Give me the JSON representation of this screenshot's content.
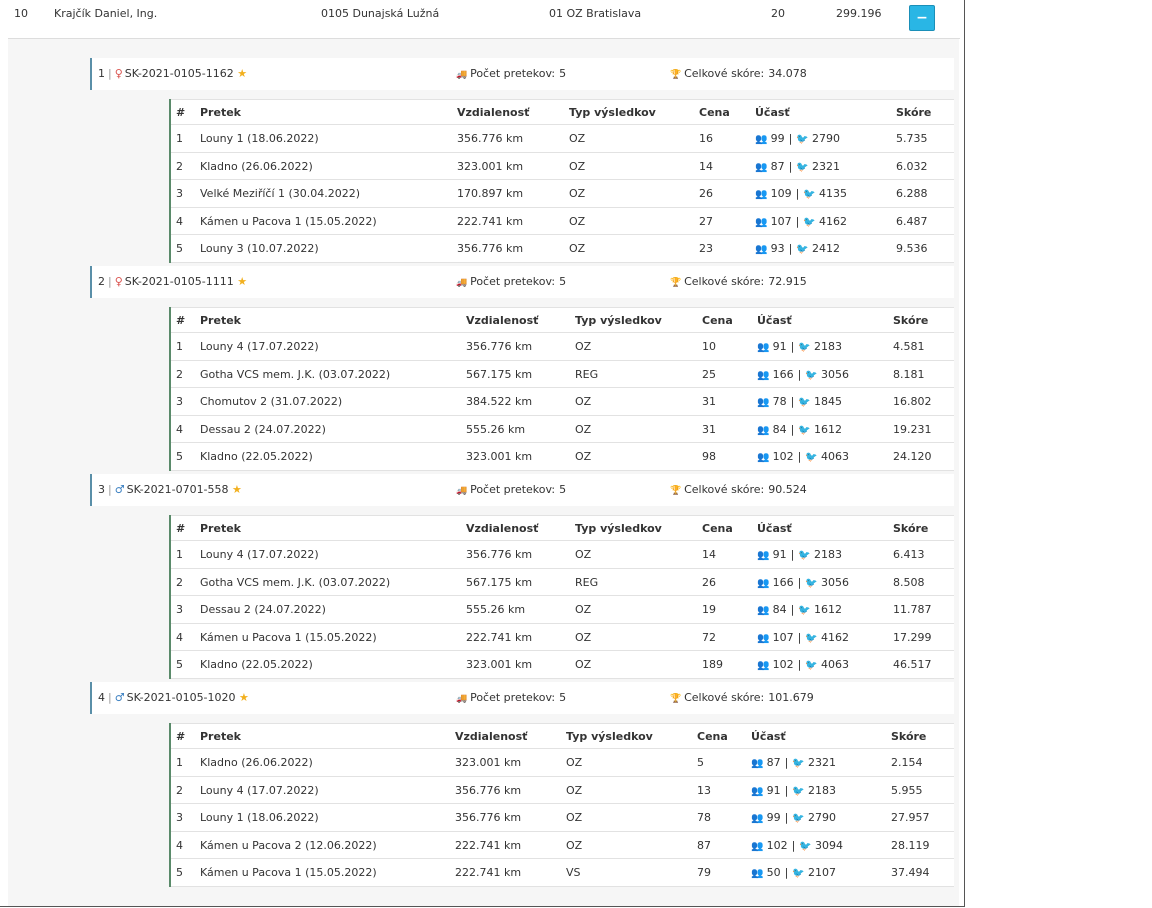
{
  "top_row": {
    "rank": "10",
    "name": "Krajčík Daniel, Ing.",
    "club": "0105 Dunajská Lužná",
    "region": "01 OZ Bratislava",
    "count": "20",
    "score": "299.196",
    "collapse_label": "−"
  },
  "labels": {
    "races_count": "Počet pretekov:",
    "total_score": "Celkové skóre:",
    "sep": "|"
  },
  "columns": {
    "num": "#",
    "race": "Pretek",
    "distance": "Vzdialenosť",
    "type": "Typ výsledkov",
    "price": "Cena",
    "participation": "Účasť",
    "score": "Skóre"
  },
  "colors": {
    "accent": "#29b6e5",
    "participation": "#8a4fc4",
    "star": "#f2b01e"
  },
  "birds": [
    {
      "index": "1",
      "sex_icon": "female-icon",
      "sex_symbol": "♀",
      "ring": "SK-2021-0105-1162",
      "races_count": "5",
      "total_score": "34.078",
      "rows": [
        {
          "n": "1",
          "race": "Louny 1 (18.06.2022)",
          "dist": "356.776 km",
          "type": "OZ",
          "price": "16",
          "p1": "99",
          "p2": "2790",
          "score": "5.735"
        },
        {
          "n": "2",
          "race": "Kladno (26.06.2022)",
          "dist": "323.001 km",
          "type": "OZ",
          "price": "14",
          "p1": "87",
          "p2": "2321",
          "score": "6.032"
        },
        {
          "n": "3",
          "race": "Velké Meziříčí 1 (30.04.2022)",
          "dist": "170.897 km",
          "type": "OZ",
          "price": "26",
          "p1": "109",
          "p2": "4135",
          "score": "6.288"
        },
        {
          "n": "4",
          "race": "Kámen u Pacova 1 (15.05.2022)",
          "dist": "222.741 km",
          "type": "OZ",
          "price": "27",
          "p1": "107",
          "p2": "4162",
          "score": "6.487"
        },
        {
          "n": "5",
          "race": "Louny 3 (10.07.2022)",
          "dist": "356.776 km",
          "type": "OZ",
          "price": "23",
          "p1": "93",
          "p2": "2412",
          "score": "9.536"
        }
      ]
    },
    {
      "index": "2",
      "sex_icon": "female-icon",
      "sex_symbol": "♀",
      "ring": "SK-2021-0105-1111",
      "races_count": "5",
      "total_score": "72.915",
      "rows": [
        {
          "n": "1",
          "race": "Louny 4 (17.07.2022)",
          "dist": "356.776 km",
          "type": "OZ",
          "price": "10",
          "p1": "91",
          "p2": "2183",
          "score": "4.581"
        },
        {
          "n": "2",
          "race": "Gotha VCS mem. J.K. (03.07.2022)",
          "dist": "567.175 km",
          "type": "REG",
          "price": "25",
          "p1": "166",
          "p2": "3056",
          "score": "8.181"
        },
        {
          "n": "3",
          "race": "Chomutov 2 (31.07.2022)",
          "dist": "384.522 km",
          "type": "OZ",
          "price": "31",
          "p1": "78",
          "p2": "1845",
          "score": "16.802"
        },
        {
          "n": "4",
          "race": "Dessau 2 (24.07.2022)",
          "dist": "555.26 km",
          "type": "OZ",
          "price": "31",
          "p1": "84",
          "p2": "1612",
          "score": "19.231"
        },
        {
          "n": "5",
          "race": "Kladno (22.05.2022)",
          "dist": "323.001 km",
          "type": "OZ",
          "price": "98",
          "p1": "102",
          "p2": "4063",
          "score": "24.120"
        }
      ]
    },
    {
      "index": "3",
      "sex_icon": "male-icon",
      "sex_symbol": "♂",
      "ring": "SK-2021-0701-558",
      "races_count": "5",
      "total_score": "90.524",
      "rows": [
        {
          "n": "1",
          "race": "Louny 4 (17.07.2022)",
          "dist": "356.776 km",
          "type": "OZ",
          "price": "14",
          "p1": "91",
          "p2": "2183",
          "score": "6.413"
        },
        {
          "n": "2",
          "race": "Gotha VCS mem. J.K. (03.07.2022)",
          "dist": "567.175 km",
          "type": "REG",
          "price": "26",
          "p1": "166",
          "p2": "3056",
          "score": "8.508"
        },
        {
          "n": "3",
          "race": "Dessau 2 (24.07.2022)",
          "dist": "555.26 km",
          "type": "OZ",
          "price": "19",
          "p1": "84",
          "p2": "1612",
          "score": "11.787"
        },
        {
          "n": "4",
          "race": "Kámen u Pacova 1 (15.05.2022)",
          "dist": "222.741 km",
          "type": "OZ",
          "price": "72",
          "p1": "107",
          "p2": "4162",
          "score": "17.299"
        },
        {
          "n": "5",
          "race": "Kladno (22.05.2022)",
          "dist": "323.001 km",
          "type": "OZ",
          "price": "189",
          "p1": "102",
          "p2": "4063",
          "score": "46.517"
        }
      ]
    },
    {
      "index": "4",
      "sex_icon": "male-icon",
      "sex_symbol": "♂",
      "ring": "SK-2021-0105-1020",
      "races_count": "5",
      "total_score": "101.679",
      "rows": [
        {
          "n": "1",
          "race": "Kladno (26.06.2022)",
          "dist": "323.001 km",
          "type": "OZ",
          "price": "5",
          "p1": "87",
          "p2": "2321",
          "score": "2.154"
        },
        {
          "n": "2",
          "race": "Louny 4 (17.07.2022)",
          "dist": "356.776 km",
          "type": "OZ",
          "price": "13",
          "p1": "91",
          "p2": "2183",
          "score": "5.955"
        },
        {
          "n": "3",
          "race": "Louny 1 (18.06.2022)",
          "dist": "356.776 km",
          "type": "OZ",
          "price": "78",
          "p1": "99",
          "p2": "2790",
          "score": "27.957"
        },
        {
          "n": "4",
          "race": "Kámen u Pacova 2 (12.06.2022)",
          "dist": "222.741 km",
          "type": "OZ",
          "price": "87",
          "p1": "102",
          "p2": "3094",
          "score": "28.119"
        },
        {
          "n": "5",
          "race": "Kámen u Pacova 1 (15.05.2022)",
          "dist": "222.741 km",
          "type": "VS",
          "price": "79",
          "p1": "50",
          "p2": "2107",
          "score": "37.494"
        }
      ]
    }
  ]
}
